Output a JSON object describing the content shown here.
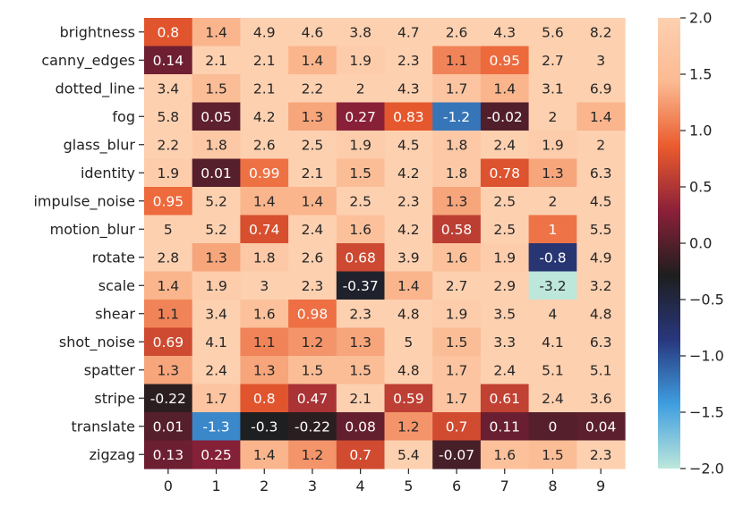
{
  "chart_data": {
    "type": "heatmap",
    "title": "",
    "xlabel": "",
    "ylabel": "",
    "x_categories": [
      "0",
      "1",
      "2",
      "3",
      "4",
      "5",
      "6",
      "7",
      "8",
      "9"
    ],
    "y_categories": [
      "brightness",
      "canny_edges",
      "dotted_line",
      "fog",
      "glass_blur",
      "identity",
      "impulse_noise",
      "motion_blur",
      "rotate",
      "scale",
      "shear",
      "shot_noise",
      "spatter",
      "stripe",
      "translate",
      "zigzag"
    ],
    "values": [
      [
        "0.8",
        "1.4",
        "4.9",
        "4.6",
        "3.8",
        "4.7",
        "2.6",
        "4.3",
        "5.6",
        "8.2"
      ],
      [
        "0.14",
        "2.1",
        "2.1",
        "1.4",
        "1.9",
        "2.3",
        "1.1",
        "0.95",
        "2.7",
        "3"
      ],
      [
        "3.4",
        "1.5",
        "2.1",
        "2.2",
        "2",
        "4.3",
        "1.7",
        "1.4",
        "3.1",
        "6.9"
      ],
      [
        "5.8",
        "0.05",
        "4.2",
        "1.3",
        "0.27",
        "0.83",
        "-1.2",
        "-0.02",
        "2",
        "1.4"
      ],
      [
        "2.2",
        "1.8",
        "2.6",
        "2.5",
        "1.9",
        "4.5",
        "1.8",
        "2.4",
        "1.9",
        "2"
      ],
      [
        "1.9",
        "0.01",
        "0.99",
        "2.1",
        "1.5",
        "4.2",
        "1.8",
        "0.78",
        "1.3",
        "6.3"
      ],
      [
        "0.95",
        "5.2",
        "1.4",
        "1.4",
        "2.5",
        "2.3",
        "1.3",
        "2.5",
        "2",
        "4.5"
      ],
      [
        "5",
        "5.2",
        "0.74",
        "2.4",
        "1.6",
        "4.2",
        "0.58",
        "2.5",
        "1",
        "5.5"
      ],
      [
        "2.8",
        "1.3",
        "1.8",
        "2.6",
        "0.68",
        "3.9",
        "1.6",
        "1.9",
        "-0.8",
        "4.9"
      ],
      [
        "1.4",
        "1.9",
        "3",
        "2.3",
        "-0.37",
        "1.4",
        "2.7",
        "2.9",
        "-3.2",
        "3.2"
      ],
      [
        "1.1",
        "3.4",
        "1.6",
        "0.98",
        "2.3",
        "4.8",
        "1.9",
        "3.5",
        "4",
        "4.8"
      ],
      [
        "0.69",
        "4.1",
        "1.1",
        "1.2",
        "1.3",
        "5",
        "1.5",
        "3.3",
        "4.1",
        "6.3"
      ],
      [
        "1.3",
        "2.4",
        "1.3",
        "1.5",
        "1.5",
        "4.8",
        "1.7",
        "2.4",
        "5.1",
        "5.1"
      ],
      [
        "-0.22",
        "1.7",
        "0.8",
        "0.47",
        "2.1",
        "0.59",
        "1.7",
        "0.61",
        "2.4",
        "3.6"
      ],
      [
        "0.01",
        "-1.3",
        "-0.3",
        "-0.22",
        "0.08",
        "1.2",
        "0.7",
        "0.11",
        "0",
        "0.04"
      ],
      [
        "0.13",
        "0.25",
        "1.4",
        "1.2",
        "0.7",
        "5.4",
        "-0.07",
        "1.6",
        "1.5",
        "2.3"
      ]
    ],
    "colorbar": {
      "vmin": -2.0,
      "vmax": 2.0,
      "ticks": [
        "2.0",
        "1.5",
        "1.0",
        "0.5",
        "0.0",
        "−0.5",
        "−1.0",
        "−1.5",
        "−2.0"
      ],
      "tick_values": [
        2.0,
        1.5,
        1.0,
        0.5,
        0.0,
        -0.5,
        -1.0,
        -1.5,
        -2.0
      ],
      "colormap": "icefire",
      "color_stops": [
        "#bde7db",
        "#3f9ee0",
        "#28377d",
        "#1e1e1e",
        "#8b2039",
        "#ea5b2d",
        "#fbba92",
        "#fdd0b0"
      ]
    },
    "grid": false,
    "legend": "colorbar-right"
  }
}
